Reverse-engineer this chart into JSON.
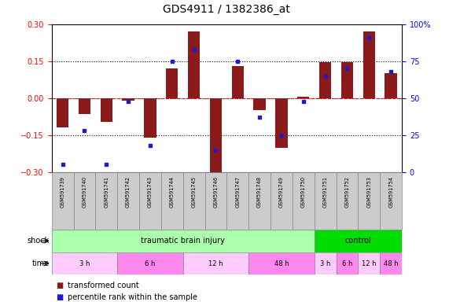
{
  "title": "GDS4911 / 1382386_at",
  "samples": [
    "GSM591739",
    "GSM591740",
    "GSM591741",
    "GSM591742",
    "GSM591743",
    "GSM591744",
    "GSM591745",
    "GSM591746",
    "GSM591747",
    "GSM591748",
    "GSM591749",
    "GSM591750",
    "GSM591751",
    "GSM591752",
    "GSM591753",
    "GSM591754"
  ],
  "bar_values": [
    -0.12,
    -0.065,
    -0.095,
    -0.01,
    -0.16,
    0.12,
    0.27,
    -0.32,
    0.13,
    -0.05,
    -0.2,
    0.005,
    0.145,
    0.145,
    0.27,
    0.1
  ],
  "blue_values": [
    5,
    28,
    5,
    48,
    18,
    75,
    83,
    15,
    75,
    37,
    25,
    48,
    65,
    70,
    91,
    68
  ],
  "ylim": [
    -0.3,
    0.3
  ],
  "yticks_left": [
    -0.3,
    -0.15,
    0.0,
    0.15,
    0.3
  ],
  "yticks_right": [
    0,
    25,
    50,
    75,
    100
  ],
  "bar_color": "#8B1A1A",
  "blue_color": "#1C1CCD",
  "hline_vals": [
    -0.15,
    0.0,
    0.15
  ],
  "tbi_color": "#AAFFAA",
  "ctrl_color": "#00DD00",
  "time_colors": [
    "#FFCCFF",
    "#FF88EE",
    "#FFCCFF",
    "#FF88EE",
    "#FFCCFF",
    "#FF88EE",
    "#FFCCFF",
    "#FF88EE"
  ],
  "time_groups": [
    {
      "label": "3 h",
      "start": 0,
      "end": 2
    },
    {
      "label": "6 h",
      "start": 3,
      "end": 5
    },
    {
      "label": "12 h",
      "start": 6,
      "end": 8
    },
    {
      "label": "48 h",
      "start": 9,
      "end": 11
    },
    {
      "label": "3 h",
      "start": 12,
      "end": 12
    },
    {
      "label": "6 h",
      "start": 13,
      "end": 13
    },
    {
      "label": "12 h",
      "start": 14,
      "end": 14
    },
    {
      "label": "48 h",
      "start": 15,
      "end": 15
    }
  ]
}
